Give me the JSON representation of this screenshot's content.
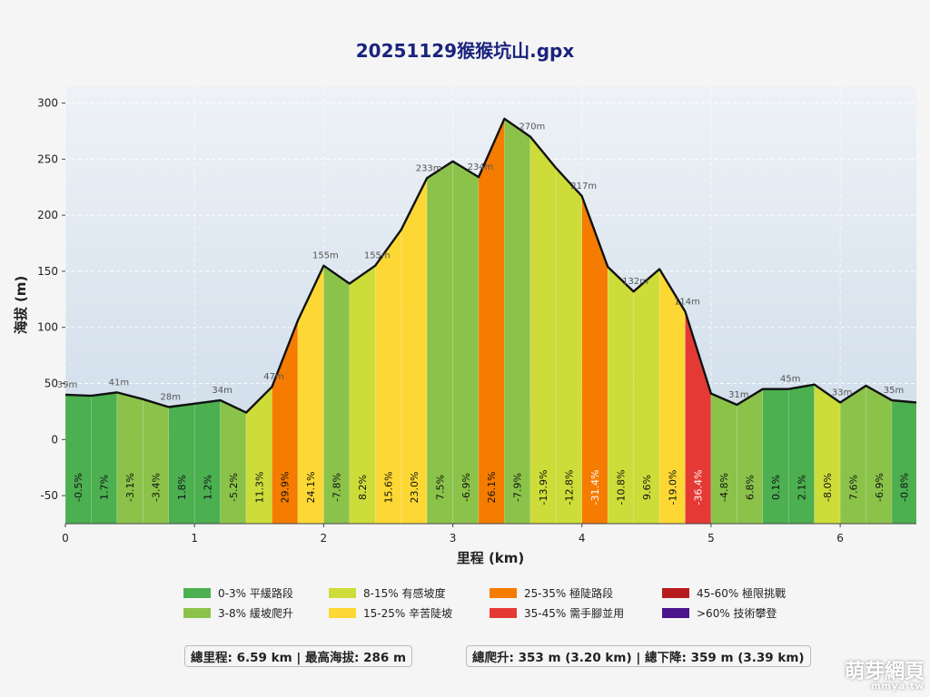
{
  "page": {
    "watermark": "萌芽網頁",
    "watermark_sub": "mmya.tw"
  },
  "legend": [
    {
      "label": "0-3% 平緩路段",
      "color": "#4caf50"
    },
    {
      "label": "3-8% 緩坡爬升",
      "color": "#8bc34a"
    },
    {
      "label": "8-15% 有感坡度",
      "color": "#cddc39"
    },
    {
      "label": "15-25% 辛苦陡坡",
      "color": "#fdd835"
    },
    {
      "label": "25-35% 極陡路段",
      "color": "#f57c00"
    },
    {
      "label": "35-45% 需手腳並用",
      "color": "#e53935"
    },
    {
      "label": "45-60% 極限挑戰",
      "color": "#b71c1c"
    },
    {
      "label": ">60% 技術攀登",
      "color": "#4a148c"
    }
  ],
  "stats": {
    "left": "總里程: 6.59 km | 最高海拔: 286 m",
    "right": "總爬升: 353 m (3.20 km) | 總下降: 359 m (3.39 km)"
  },
  "chart_data": {
    "type": "area",
    "title": "20251129猴猴坑山.gpx",
    "xlabel": "里程 (km)",
    "ylabel": "海拔 (m)",
    "xlim": [
      0,
      6.59
    ],
    "ylim": [
      -75,
      315
    ],
    "xticks": [
      "0",
      "1",
      "2",
      "3",
      "4",
      "5",
      "6"
    ],
    "yticks": [
      "-50",
      "0",
      "50",
      "100",
      "150",
      "200",
      "250",
      "300"
    ],
    "grid": true,
    "profile": [
      {
        "x": 0.0,
        "y": 40
      },
      {
        "x": 0.2,
        "y": 39
      },
      {
        "x": 0.4,
        "y": 42
      },
      {
        "x": 0.6,
        "y": 36
      },
      {
        "x": 0.8,
        "y": 29
      },
      {
        "x": 1.0,
        "y": 32
      },
      {
        "x": 1.2,
        "y": 35
      },
      {
        "x": 1.4,
        "y": 24
      },
      {
        "x": 1.6,
        "y": 47
      },
      {
        "x": 1.8,
        "y": 106
      },
      {
        "x": 2.0,
        "y": 155
      },
      {
        "x": 2.2,
        "y": 139
      },
      {
        "x": 2.4,
        "y": 155
      },
      {
        "x": 2.6,
        "y": 187
      },
      {
        "x": 2.8,
        "y": 233
      },
      {
        "x": 3.0,
        "y": 248
      },
      {
        "x": 3.2,
        "y": 234
      },
      {
        "x": 3.4,
        "y": 286
      },
      {
        "x": 3.6,
        "y": 270
      },
      {
        "x": 3.8,
        "y": 242
      },
      {
        "x": 4.0,
        "y": 217
      },
      {
        "x": 4.2,
        "y": 154
      },
      {
        "x": 4.4,
        "y": 132
      },
      {
        "x": 4.6,
        "y": 152
      },
      {
        "x": 4.8,
        "y": 114
      },
      {
        "x": 5.0,
        "y": 41
      },
      {
        "x": 5.2,
        "y": 31
      },
      {
        "x": 5.4,
        "y": 45
      },
      {
        "x": 5.6,
        "y": 45
      },
      {
        "x": 5.8,
        "y": 49
      },
      {
        "x": 6.0,
        "y": 33
      },
      {
        "x": 6.2,
        "y": 48
      },
      {
        "x": 6.4,
        "y": 35
      },
      {
        "x": 6.59,
        "y": 33
      }
    ],
    "segments": [
      {
        "grade": "-0.5%",
        "color": "#4caf50"
      },
      {
        "grade": "1.7%",
        "color": "#4caf50"
      },
      {
        "grade": "-3.1%",
        "color": "#8bc34a"
      },
      {
        "grade": "-3.4%",
        "color": "#8bc34a"
      },
      {
        "grade": "1.8%",
        "color": "#4caf50"
      },
      {
        "grade": "1.2%",
        "color": "#4caf50"
      },
      {
        "grade": "-5.2%",
        "color": "#8bc34a"
      },
      {
        "grade": "11.3%",
        "color": "#cddc39"
      },
      {
        "grade": "29.9%",
        "color": "#f57c00"
      },
      {
        "grade": "24.1%",
        "color": "#fdd835"
      },
      {
        "grade": "-7.8%",
        "color": "#8bc34a"
      },
      {
        "grade": "8.2%",
        "color": "#cddc39"
      },
      {
        "grade": "15.6%",
        "color": "#fdd835"
      },
      {
        "grade": "23.0%",
        "color": "#fdd835"
      },
      {
        "grade": "7.5%",
        "color": "#8bc34a"
      },
      {
        "grade": "-6.9%",
        "color": "#8bc34a"
      },
      {
        "grade": "26.1%",
        "color": "#f57c00"
      },
      {
        "grade": "-7.9%",
        "color": "#8bc34a"
      },
      {
        "grade": "-13.9%",
        "color": "#cddc39"
      },
      {
        "grade": "-12.8%",
        "color": "#cddc39"
      },
      {
        "grade": "-31.4%",
        "color": "#f57c00"
      },
      {
        "grade": "-10.8%",
        "color": "#cddc39"
      },
      {
        "grade": "9.6%",
        "color": "#cddc39"
      },
      {
        "grade": "-19.0%",
        "color": "#fdd835"
      },
      {
        "grade": "-36.4%",
        "color": "#e53935"
      },
      {
        "grade": "-4.8%",
        "color": "#8bc34a"
      },
      {
        "grade": "6.8%",
        "color": "#8bc34a"
      },
      {
        "grade": "0.1%",
        "color": "#4caf50"
      },
      {
        "grade": "2.1%",
        "color": "#4caf50"
      },
      {
        "grade": "-8.0%",
        "color": "#cddc39"
      },
      {
        "grade": "7.6%",
        "color": "#8bc34a"
      },
      {
        "grade": "-6.9%",
        "color": "#8bc34a"
      },
      {
        "grade": "-0.8%",
        "color": "#4caf50"
      }
    ],
    "elevation_labels": [
      {
        "x": 0.0,
        "y": 40,
        "text": "39m"
      },
      {
        "x": 0.4,
        "y": 42,
        "text": "41m"
      },
      {
        "x": 0.8,
        "y": 29,
        "text": "28m"
      },
      {
        "x": 1.2,
        "y": 35,
        "text": "34m"
      },
      {
        "x": 1.6,
        "y": 47,
        "text": "47m"
      },
      {
        "x": 2.0,
        "y": 155,
        "text": "155m"
      },
      {
        "x": 2.4,
        "y": 155,
        "text": "155m"
      },
      {
        "x": 2.8,
        "y": 233,
        "text": "233m"
      },
      {
        "x": 3.2,
        "y": 234,
        "text": "234m"
      },
      {
        "x": 3.6,
        "y": 270,
        "text": "270m"
      },
      {
        "x": 4.0,
        "y": 217,
        "text": "217m"
      },
      {
        "x": 4.4,
        "y": 132,
        "text": "132m"
      },
      {
        "x": 4.8,
        "y": 114,
        "text": "114m"
      },
      {
        "x": 5.2,
        "y": 31,
        "text": "31m"
      },
      {
        "x": 5.6,
        "y": 45,
        "text": "45m"
      },
      {
        "x": 6.0,
        "y": 33,
        "text": "33m"
      },
      {
        "x": 6.4,
        "y": 35,
        "text": "35m"
      }
    ]
  }
}
